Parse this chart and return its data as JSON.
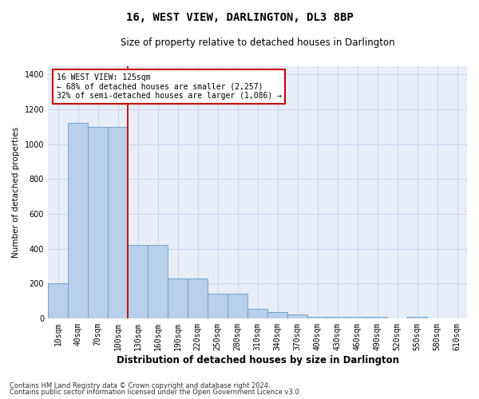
{
  "title": "16, WEST VIEW, DARLINGTON, DL3 8BP",
  "subtitle": "Size of property relative to detached houses in Darlington",
  "xlabel": "Distribution of detached houses by size in Darlington",
  "ylabel": "Number of detached properties",
  "footer_line1": "Contains HM Land Registry data © Crown copyright and database right 2024.",
  "footer_line2": "Contains public sector information licensed under the Open Government Licence v3.0.",
  "bin_labels": [
    "10sqm",
    "40sqm",
    "70sqm",
    "100sqm",
    "130sqm",
    "160sqm",
    "190sqm",
    "220sqm",
    "250sqm",
    "280sqm",
    "310sqm",
    "340sqm",
    "370sqm",
    "400sqm",
    "430sqm",
    "460sqm",
    "490sqm",
    "520sqm",
    "550sqm",
    "580sqm",
    "610sqm"
  ],
  "bar_values": [
    200,
    1120,
    1100,
    1100,
    420,
    420,
    230,
    230,
    140,
    140,
    55,
    35,
    20,
    10,
    10,
    10,
    10,
    0,
    10,
    0,
    0
  ],
  "bar_color": "#b8d0ea",
  "bar_edge_color": "#6699cc",
  "grid_color": "#c8d4e8",
  "background_color": "#e8eef8",
  "property_line_x": 3.5,
  "property_line_color": "#cc0000",
  "annotation_text": "16 WEST VIEW: 125sqm\n← 68% of detached houses are smaller (2,257)\n32% of semi-detached houses are larger (1,086) →",
  "annotation_box_color": "#ffffff",
  "annotation_box_edge": "#cc0000",
  "ylim": [
    0,
    1450
  ],
  "yticks": [
    0,
    200,
    400,
    600,
    800,
    1000,
    1200,
    1400
  ],
  "title_fontsize": 10,
  "subtitle_fontsize": 8.5,
  "ylabel_fontsize": 7.5,
  "xlabel_fontsize": 8.5,
  "tick_fontsize": 7,
  "annotation_fontsize": 7,
  "footer_fontsize": 6
}
